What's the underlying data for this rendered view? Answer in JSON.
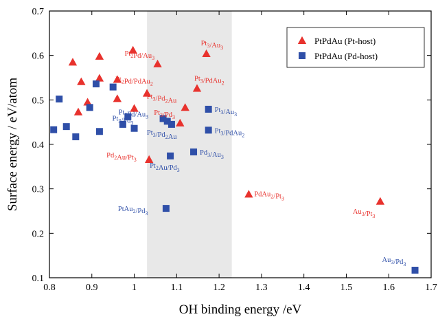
{
  "chart_data": {
    "type": "scatter",
    "xlabel": "OH binding energy /eV",
    "ylabel": "Surface energy / eV/atom",
    "xlim": [
      0.8,
      1.7
    ],
    "ylim": [
      0.1,
      0.7
    ],
    "xticks": [
      "0.8",
      "0.9",
      "1",
      "1.1",
      "1.2",
      "1.3",
      "1.4",
      "1.5",
      "1.6",
      "1.7"
    ],
    "yticks": [
      "0.1",
      "0.2",
      "0.3",
      "0.4",
      "0.5",
      "0.6",
      "0.7"
    ],
    "grid": false,
    "legend_position": "top-right",
    "shaded_band": {
      "x_from": 1.03,
      "x_to": 1.23,
      "color": "#e8e8e8"
    },
    "series": [
      {
        "name": "PtPdAu (Pt-host)",
        "marker": "triangle",
        "color": "#e8322d",
        "points": [
          {
            "x": 0.855,
            "y": 0.585
          },
          {
            "x": 0.918,
            "y": 0.598
          },
          {
            "x": 0.997,
            "y": 0.612
          },
          {
            "x": 1.055,
            "y": 0.581,
            "label": {
              "base": [
                "Pt",
                "Pd",
                "/Au",
                ""
              ],
              "subs": [
                "2",
                "",
                "3",
                ""
              ]
            }
          },
          {
            "x": 1.17,
            "y": 0.604,
            "label": {
              "base": [
                "Pt",
                "/Au",
                ""
              ],
              "subs": [
                "3",
                "3",
                ""
              ]
            }
          },
          {
            "x": 0.875,
            "y": 0.541
          },
          {
            "x": 0.918,
            "y": 0.549
          },
          {
            "x": 0.96,
            "y": 0.546
          },
          {
            "x": 1.03,
            "y": 0.515,
            "label": {
              "base": [
                "Pt",
                "Pd/PdAu",
                ""
              ],
              "subs": [
                "2",
                "2",
                ""
              ]
            }
          },
          {
            "x": 1.148,
            "y": 0.526,
            "label": {
              "base": [
                "Pt",
                "/PdAu",
                ""
              ],
              "subs": [
                "3",
                "2",
                ""
              ]
            }
          },
          {
            "x": 0.89,
            "y": 0.495
          },
          {
            "x": 0.96,
            "y": 0.503
          },
          {
            "x": 1.0,
            "y": 0.481
          },
          {
            "x": 1.12,
            "y": 0.483,
            "label": {
              "base": [
                "Pt",
                "/Pd",
                "Au"
              ],
              "subs": [
                "3",
                "2",
                ""
              ]
            }
          },
          {
            "x": 0.868,
            "y": 0.473
          },
          {
            "x": 1.108,
            "y": 0.448,
            "label": {
              "base": [
                "Pt",
                "/Pd",
                ""
              ],
              "subs": [
                "3",
                "3",
                ""
              ]
            }
          },
          {
            "x": 1.035,
            "y": 0.366,
            "label": {
              "base": [
                "Pd",
                "Au/Pt",
                ""
              ],
              "subs": [
                "2",
                "3",
                ""
              ]
            }
          },
          {
            "x": 1.27,
            "y": 0.288,
            "label": {
              "base": [
                "PdAu",
                "/Pt",
                ""
              ],
              "subs": [
                "2",
                "3",
                ""
              ]
            }
          },
          {
            "x": 1.58,
            "y": 0.272,
            "label": {
              "base": [
                "Au",
                "/Pt",
                ""
              ],
              "subs": [
                "3",
                "3",
                ""
              ]
            }
          }
        ]
      },
      {
        "name": "PtPdAu (Pd-host)",
        "marker": "square",
        "color": "#2f4fa8",
        "points": [
          {
            "x": 0.823,
            "y": 0.502
          },
          {
            "x": 0.91,
            "y": 0.536
          },
          {
            "x": 0.95,
            "y": 0.529
          },
          {
            "x": 0.895,
            "y": 0.483
          },
          {
            "x": 0.81,
            "y": 0.433
          },
          {
            "x": 0.84,
            "y": 0.44
          },
          {
            "x": 0.862,
            "y": 0.417
          },
          {
            "x": 0.918,
            "y": 0.429
          },
          {
            "x": 0.973,
            "y": 0.445
          },
          {
            "x": 0.985,
            "y": 0.462
          },
          {
            "x": 1.0,
            "y": 0.436,
            "label": {
              "base": [
                "Pt",
                "/Pd",
                ""
              ],
              "subs": [
                "3",
                "3",
                ""
              ]
            }
          },
          {
            "x": 1.068,
            "y": 0.458,
            "label": {
              "base": [
                "Pt",
                "Pd/Au",
                ""
              ],
              "subs": [
                "2",
                "3",
                ""
              ]
            }
          },
          {
            "x": 1.078,
            "y": 0.452
          },
          {
            "x": 1.088,
            "y": 0.445,
            "label": {
              "base": [
                "Pt",
                "/Pd",
                "Au"
              ],
              "subs": [
                "3",
                "2",
                ""
              ]
            }
          },
          {
            "x": 1.175,
            "y": 0.479,
            "label": {
              "base": [
                "Pt",
                "/Au",
                ""
              ],
              "subs": [
                "3",
                "3",
                ""
              ]
            }
          },
          {
            "x": 1.175,
            "y": 0.432,
            "label": {
              "base": [
                "Pt",
                "/PdAu",
                ""
              ],
              "subs": [
                "3",
                "2",
                ""
              ]
            }
          },
          {
            "x": 1.085,
            "y": 0.374,
            "label": {
              "base": [
                "Pt",
                "Au/Pd",
                ""
              ],
              "subs": [
                "2",
                "3",
                ""
              ]
            }
          },
          {
            "x": 1.14,
            "y": 0.383,
            "label": {
              "base": [
                "Pd",
                "/Au",
                ""
              ],
              "subs": [
                "3",
                "3",
                ""
              ]
            }
          },
          {
            "x": 1.075,
            "y": 0.256,
            "label": {
              "base": [
                "PtAu",
                "/Pd",
                ""
              ],
              "subs": [
                "2",
                "3",
                ""
              ]
            }
          },
          {
            "x": 1.662,
            "y": 0.117,
            "label": {
              "base": [
                "Au",
                "/Pd",
                ""
              ],
              "subs": [
                "3",
                "3",
                ""
              ]
            }
          }
        ]
      }
    ]
  }
}
